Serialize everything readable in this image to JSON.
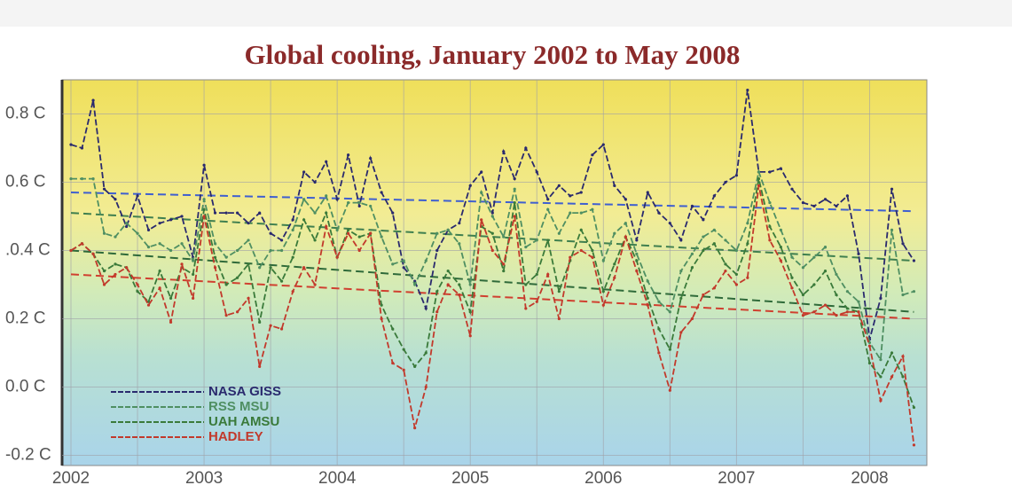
{
  "chart_data": {
    "type": "line",
    "title": "Global cooling, January 2002 to May 2008",
    "x": [
      2002.0,
      2002.083,
      2002.167,
      2002.25,
      2002.333,
      2002.417,
      2002.5,
      2002.583,
      2002.667,
      2002.75,
      2002.833,
      2002.917,
      2003.0,
      2003.083,
      2003.167,
      2003.25,
      2003.333,
      2003.417,
      2003.5,
      2003.583,
      2003.667,
      2003.75,
      2003.833,
      2003.917,
      2004.0,
      2004.083,
      2004.167,
      2004.25,
      2004.333,
      2004.417,
      2004.5,
      2004.583,
      2004.667,
      2004.75,
      2004.833,
      2004.917,
      2005.0,
      2005.083,
      2005.167,
      2005.25,
      2005.333,
      2005.417,
      2005.5,
      2005.583,
      2005.667,
      2005.75,
      2005.833,
      2005.917,
      2006.0,
      2006.083,
      2006.167,
      2006.25,
      2006.333,
      2006.417,
      2006.5,
      2006.583,
      2006.667,
      2006.75,
      2006.833,
      2006.917,
      2007.0,
      2007.083,
      2007.167,
      2007.25,
      2007.333,
      2007.417,
      2007.5,
      2007.583,
      2007.667,
      2007.75,
      2007.833,
      2007.917,
      2008.0,
      2008.083,
      2008.167,
      2008.25,
      2008.333
    ],
    "series": [
      {
        "name": "NASA GISS",
        "color": "#2a2a6e",
        "trend_color": "#3f5fd0",
        "trend": [
          0.57,
          0.515
        ],
        "values": [
          0.71,
          0.7,
          0.84,
          0.58,
          0.55,
          0.47,
          0.56,
          0.46,
          0.48,
          0.49,
          0.5,
          0.38,
          0.65,
          0.51,
          0.51,
          0.51,
          0.48,
          0.51,
          0.45,
          0.43,
          0.49,
          0.63,
          0.6,
          0.66,
          0.55,
          0.68,
          0.53,
          0.67,
          0.57,
          0.51,
          0.35,
          0.31,
          0.23,
          0.4,
          0.46,
          0.48,
          0.59,
          0.63,
          0.51,
          0.69,
          0.61,
          0.7,
          0.63,
          0.55,
          0.59,
          0.56,
          0.57,
          0.68,
          0.71,
          0.59,
          0.55,
          0.43,
          0.57,
          0.51,
          0.48,
          0.43,
          0.53,
          0.49,
          0.56,
          0.6,
          0.62,
          0.87,
          0.63,
          0.63,
          0.64,
          0.58,
          0.54,
          0.53,
          0.55,
          0.53,
          0.56,
          0.39,
          0.14,
          0.26,
          0.58,
          0.42,
          0.37
        ]
      },
      {
        "name": "RSS MSU",
        "color": "#4f8f62",
        "trend_color": "#3f7f4f",
        "trend": [
          0.51,
          0.37
        ],
        "values": [
          0.61,
          0.61,
          0.61,
          0.45,
          0.44,
          0.48,
          0.45,
          0.41,
          0.42,
          0.4,
          0.42,
          0.37,
          0.55,
          0.42,
          0.38,
          0.4,
          0.43,
          0.35,
          0.4,
          0.4,
          0.46,
          0.55,
          0.51,
          0.56,
          0.46,
          0.54,
          0.54,
          0.53,
          0.44,
          0.36,
          0.37,
          0.3,
          0.37,
          0.45,
          0.46,
          0.42,
          0.3,
          0.57,
          0.5,
          0.44,
          0.58,
          0.41,
          0.43,
          0.52,
          0.45,
          0.51,
          0.51,
          0.52,
          0.37,
          0.45,
          0.48,
          0.39,
          0.31,
          0.25,
          0.22,
          0.34,
          0.39,
          0.44,
          0.46,
          0.43,
          0.4,
          0.48,
          0.63,
          0.54,
          0.46,
          0.38,
          0.35,
          0.38,
          0.41,
          0.33,
          0.28,
          0.25,
          0.13,
          0.08,
          0.46,
          0.27,
          0.28
        ]
      },
      {
        "name": "UAH AMSU",
        "color": "#3a7a3a",
        "trend_color": "#2f6a3a",
        "trend": [
          0.4,
          0.22
        ],
        "values": [
          0.4,
          0.42,
          0.39,
          0.34,
          0.36,
          0.35,
          0.28,
          0.25,
          0.34,
          0.26,
          0.35,
          0.33,
          0.52,
          0.38,
          0.3,
          0.32,
          0.36,
          0.19,
          0.35,
          0.31,
          0.38,
          0.49,
          0.43,
          0.51,
          0.38,
          0.46,
          0.44,
          0.45,
          0.24,
          0.17,
          0.11,
          0.06,
          0.1,
          0.28,
          0.34,
          0.3,
          0.22,
          0.47,
          0.45,
          0.34,
          0.54,
          0.3,
          0.33,
          0.43,
          0.28,
          0.37,
          0.46,
          0.4,
          0.28,
          0.36,
          0.44,
          0.37,
          0.26,
          0.17,
          0.11,
          0.26,
          0.35,
          0.4,
          0.42,
          0.36,
          0.33,
          0.42,
          0.61,
          0.47,
          0.41,
          0.32,
          0.27,
          0.3,
          0.34,
          0.27,
          0.23,
          0.22,
          0.07,
          0.03,
          0.1,
          0.03,
          -0.06
        ]
      },
      {
        "name": "HADLEY",
        "color": "#c2392b",
        "trend_color": "#d04030",
        "trend": [
          0.33,
          0.2
        ],
        "values": [
          0.4,
          0.42,
          0.39,
          0.3,
          0.33,
          0.35,
          0.3,
          0.24,
          0.29,
          0.19,
          0.36,
          0.26,
          0.5,
          0.35,
          0.21,
          0.22,
          0.26,
          0.06,
          0.18,
          0.17,
          0.28,
          0.35,
          0.3,
          0.47,
          0.38,
          0.45,
          0.4,
          0.45,
          0.2,
          0.07,
          0.05,
          -0.12,
          0.0,
          0.22,
          0.3,
          0.27,
          0.15,
          0.49,
          0.4,
          0.36,
          0.5,
          0.23,
          0.25,
          0.33,
          0.2,
          0.38,
          0.4,
          0.38,
          0.24,
          0.32,
          0.44,
          0.34,
          0.24,
          0.1,
          -0.01,
          0.16,
          0.2,
          0.27,
          0.29,
          0.34,
          0.3,
          0.32,
          0.59,
          0.43,
          0.37,
          0.29,
          0.21,
          0.22,
          0.24,
          0.21,
          0.22,
          0.22,
          0.12,
          -0.04,
          0.03,
          0.09,
          -0.17
        ]
      }
    ],
    "xlim": [
      2001.96,
      2008.43
    ],
    "xticks": [
      2002,
      2003,
      2004,
      2005,
      2006,
      2007,
      2008
    ],
    "x_minor_grid": [
      2002.5,
      2003.5,
      2004.5,
      2005.5,
      2006.5,
      2007.5
    ],
    "ylim": [
      -0.23,
      0.9
    ],
    "yticks": [
      {
        "value": -0.2,
        "label": "-0.2 C"
      },
      {
        "value": 0,
        "label": "0.0 C"
      },
      {
        "value": 0.2,
        "label": "0.2 C"
      },
      {
        "value": 0.4,
        "label": ".0.4 C"
      },
      {
        "value": 0.6,
        "label": "0.6 C"
      },
      {
        "value": 0.8,
        "label": "0.8 C"
      }
    ],
    "grid": true,
    "legend": "lower left"
  }
}
